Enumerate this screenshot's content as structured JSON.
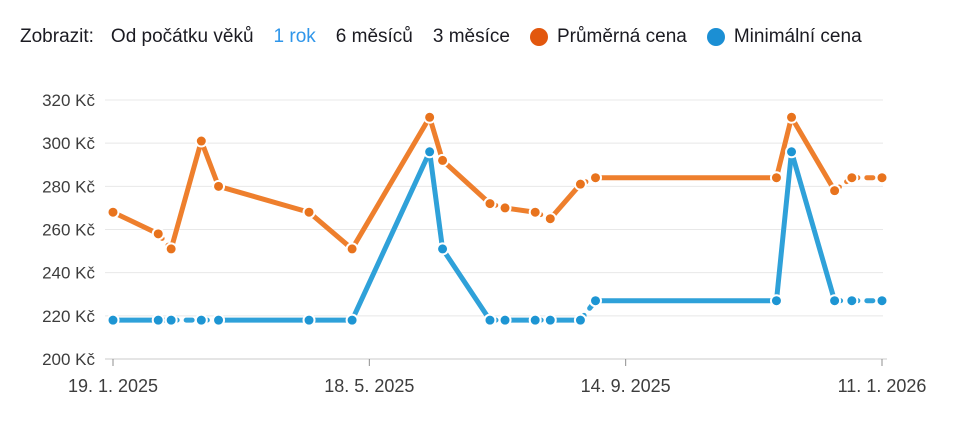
{
  "page": {
    "background": "#ffffff"
  },
  "controls": {
    "label": "Zobrazit:",
    "options": [
      {
        "label": "Od počátku věků",
        "active": false
      },
      {
        "label": "1 rok",
        "active": true
      },
      {
        "label": "6 měsíců",
        "active": false
      },
      {
        "label": "3 měsíce",
        "active": false
      }
    ],
    "active_color": "#2f96ea",
    "text_color": "#1b1b22"
  },
  "legend": [
    {
      "label": "Průměrná cena",
      "color": "#e2570e"
    },
    {
      "label": "Minimální cena",
      "color": "#1b8fd4"
    }
  ],
  "chart_data": {
    "type": "line",
    "currency": "Kč",
    "ylim": [
      200,
      320
    ],
    "y_tick_step": 20,
    "grid": true,
    "y_ticks": [
      {
        "value": 320,
        "label": "320 Kč"
      },
      {
        "value": 300,
        "label": "300 Kč"
      },
      {
        "value": 280,
        "label": "280 Kč"
      },
      {
        "value": 260,
        "label": "260 Kč"
      },
      {
        "value": 240,
        "label": "240 Kč"
      },
      {
        "value": 220,
        "label": "220 Kč"
      },
      {
        "value": 200,
        "label": "200 Kč"
      }
    ],
    "x_span_days": 357,
    "x_ticks": [
      {
        "day": 0,
        "label": "19. 1. 2025"
      },
      {
        "day": 119,
        "label": "18. 5. 2025"
      },
      {
        "day": 238,
        "label": "14. 9. 2025"
      },
      {
        "day": 357,
        "label": "11. 1. 2026"
      }
    ],
    "grid_color": "#e8e8e8",
    "axis_color": "#cbcbcb",
    "tick_color": "#8f8f8f",
    "label_color": "#3d3d3d",
    "series": [
      {
        "name": "Průměrná cena",
        "line_color": "#ee7f2d",
        "point_color": "#e8731d",
        "dashed_segments": [
          1,
          9,
          11,
          13,
          17,
          18
        ],
        "points": [
          {
            "day": 0,
            "value": 268
          },
          {
            "day": 21,
            "value": 258
          },
          {
            "day": 27,
            "value": 251
          },
          {
            "day": 41,
            "value": 301
          },
          {
            "day": 49,
            "value": 280
          },
          {
            "day": 91,
            "value": 268
          },
          {
            "day": 111,
            "value": 251
          },
          {
            "day": 147,
            "value": 312
          },
          {
            "day": 153,
            "value": 292
          },
          {
            "day": 175,
            "value": 272
          },
          {
            "day": 182,
            "value": 270
          },
          {
            "day": 196,
            "value": 268
          },
          {
            "day": 203,
            "value": 265
          },
          {
            "day": 217,
            "value": 281
          },
          {
            "day": 224,
            "value": 284
          },
          {
            "day": 308,
            "value": 284
          },
          {
            "day": 315,
            "value": 312
          },
          {
            "day": 335,
            "value": 278
          },
          {
            "day": 343,
            "value": 284
          },
          {
            "day": 357,
            "value": 284
          }
        ]
      },
      {
        "name": "Minimální cena",
        "line_color": "#2fa1d9",
        "point_color": "#1d95d3",
        "dashed_segments": [
          1,
          2,
          3,
          9,
          11,
          13,
          17,
          18
        ],
        "points": [
          {
            "day": 0,
            "value": 218
          },
          {
            "day": 21,
            "value": 218
          },
          {
            "day": 27,
            "value": 218
          },
          {
            "day": 41,
            "value": 218
          },
          {
            "day": 49,
            "value": 218
          },
          {
            "day": 91,
            "value": 218
          },
          {
            "day": 111,
            "value": 218
          },
          {
            "day": 147,
            "value": 296
          },
          {
            "day": 153,
            "value": 251
          },
          {
            "day": 175,
            "value": 218
          },
          {
            "day": 182,
            "value": 218
          },
          {
            "day": 196,
            "value": 218
          },
          {
            "day": 203,
            "value": 218
          },
          {
            "day": 217,
            "value": 218
          },
          {
            "day": 224,
            "value": 227
          },
          {
            "day": 308,
            "value": 227
          },
          {
            "day": 315,
            "value": 296
          },
          {
            "day": 335,
            "value": 227
          },
          {
            "day": 343,
            "value": 227
          },
          {
            "day": 357,
            "value": 227
          }
        ]
      }
    ]
  }
}
